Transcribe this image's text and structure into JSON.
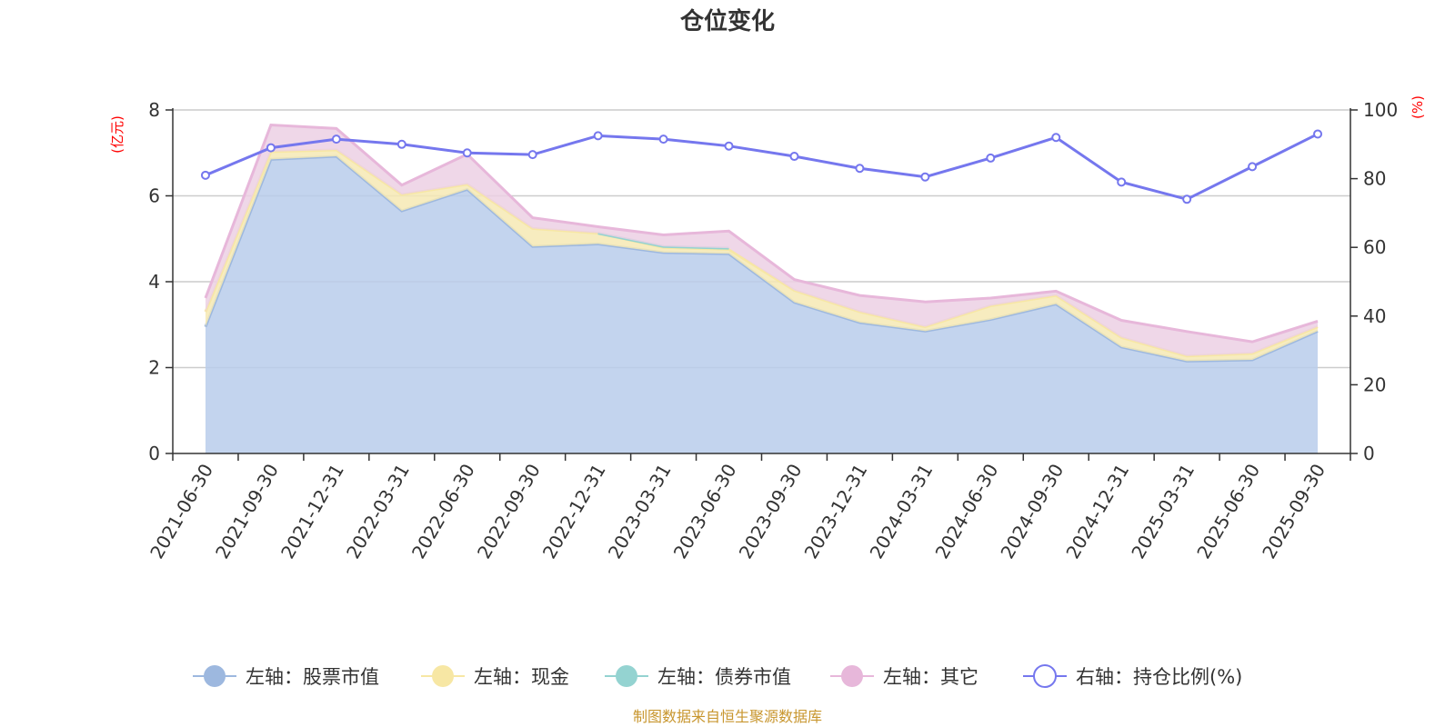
{
  "chart_data": {
    "type": "area",
    "title": "仓位变化",
    "left_axis_unit": "(亿元)",
    "right_axis_unit": "(%)",
    "categories": [
      "2021-06-30",
      "2021-09-30",
      "2021-12-31",
      "2022-03-31",
      "2022-06-30",
      "2022-09-30",
      "2022-12-31",
      "2023-03-31",
      "2023-06-30",
      "2023-09-30",
      "2023-12-31",
      "2024-03-31",
      "2024-06-30",
      "2024-09-30",
      "2024-12-31",
      "2025-03-31",
      "2025-06-30",
      "2025-09-30"
    ],
    "left_ylim": [
      0,
      8
    ],
    "left_ticks": [
      0,
      2,
      4,
      6,
      8
    ],
    "right_ylim": [
      0,
      100
    ],
    "right_ticks": [
      0,
      20,
      40,
      60,
      80,
      100
    ],
    "series": [
      {
        "name": "左轴：股票市值",
        "axis": "left",
        "kind": "area",
        "color": "#9db8df",
        "fill": "#b8cceb",
        "values": [
          2.95,
          6.85,
          6.92,
          5.65,
          6.15,
          4.82,
          4.88,
          4.68,
          4.65,
          3.52,
          3.05,
          2.85,
          3.12,
          3.48,
          2.48,
          2.15,
          2.18,
          2.85
        ]
      },
      {
        "name": "左轴：现金",
        "axis": "left",
        "kind": "area",
        "color": "#f7e7a4",
        "fill": "#f6e9b4",
        "values": [
          0.35,
          0.18,
          0.15,
          0.38,
          0.12,
          0.42,
          0.25,
          0.12,
          0.1,
          0.28,
          0.25,
          0.1,
          0.32,
          0.2,
          0.22,
          0.12,
          0.15,
          0.1
        ]
      },
      {
        "name": "左轴：债券市值",
        "axis": "left",
        "kind": "area",
        "color": "#94d3d1",
        "fill": "#a3d9d6",
        "values": [
          null,
          null,
          null,
          null,
          null,
          null,
          0.0,
          0.02,
          0.03,
          null,
          null,
          null,
          null,
          null,
          null,
          null,
          null,
          null
        ]
      },
      {
        "name": "左轴：其它",
        "axis": "left",
        "kind": "area",
        "color": "#e7b7da",
        "fill": "#ecd0e4",
        "values": [
          0.32,
          0.62,
          0.5,
          0.22,
          0.7,
          0.25,
          0.15,
          0.27,
          0.4,
          0.25,
          0.38,
          0.58,
          0.18,
          0.1,
          0.4,
          0.57,
          0.27,
          0.13
        ]
      },
      {
        "name": "右轴：持仓比例(%)",
        "axis": "right",
        "kind": "line",
        "color": "#7577ee",
        "values": [
          81,
          89,
          91.5,
          90,
          87.5,
          87,
          92.5,
          91.5,
          89.5,
          86.5,
          83,
          80.5,
          86,
          92,
          79,
          74,
          83.5,
          93
        ]
      }
    ],
    "source_note": "制图数据来自恒生聚源数据库"
  }
}
